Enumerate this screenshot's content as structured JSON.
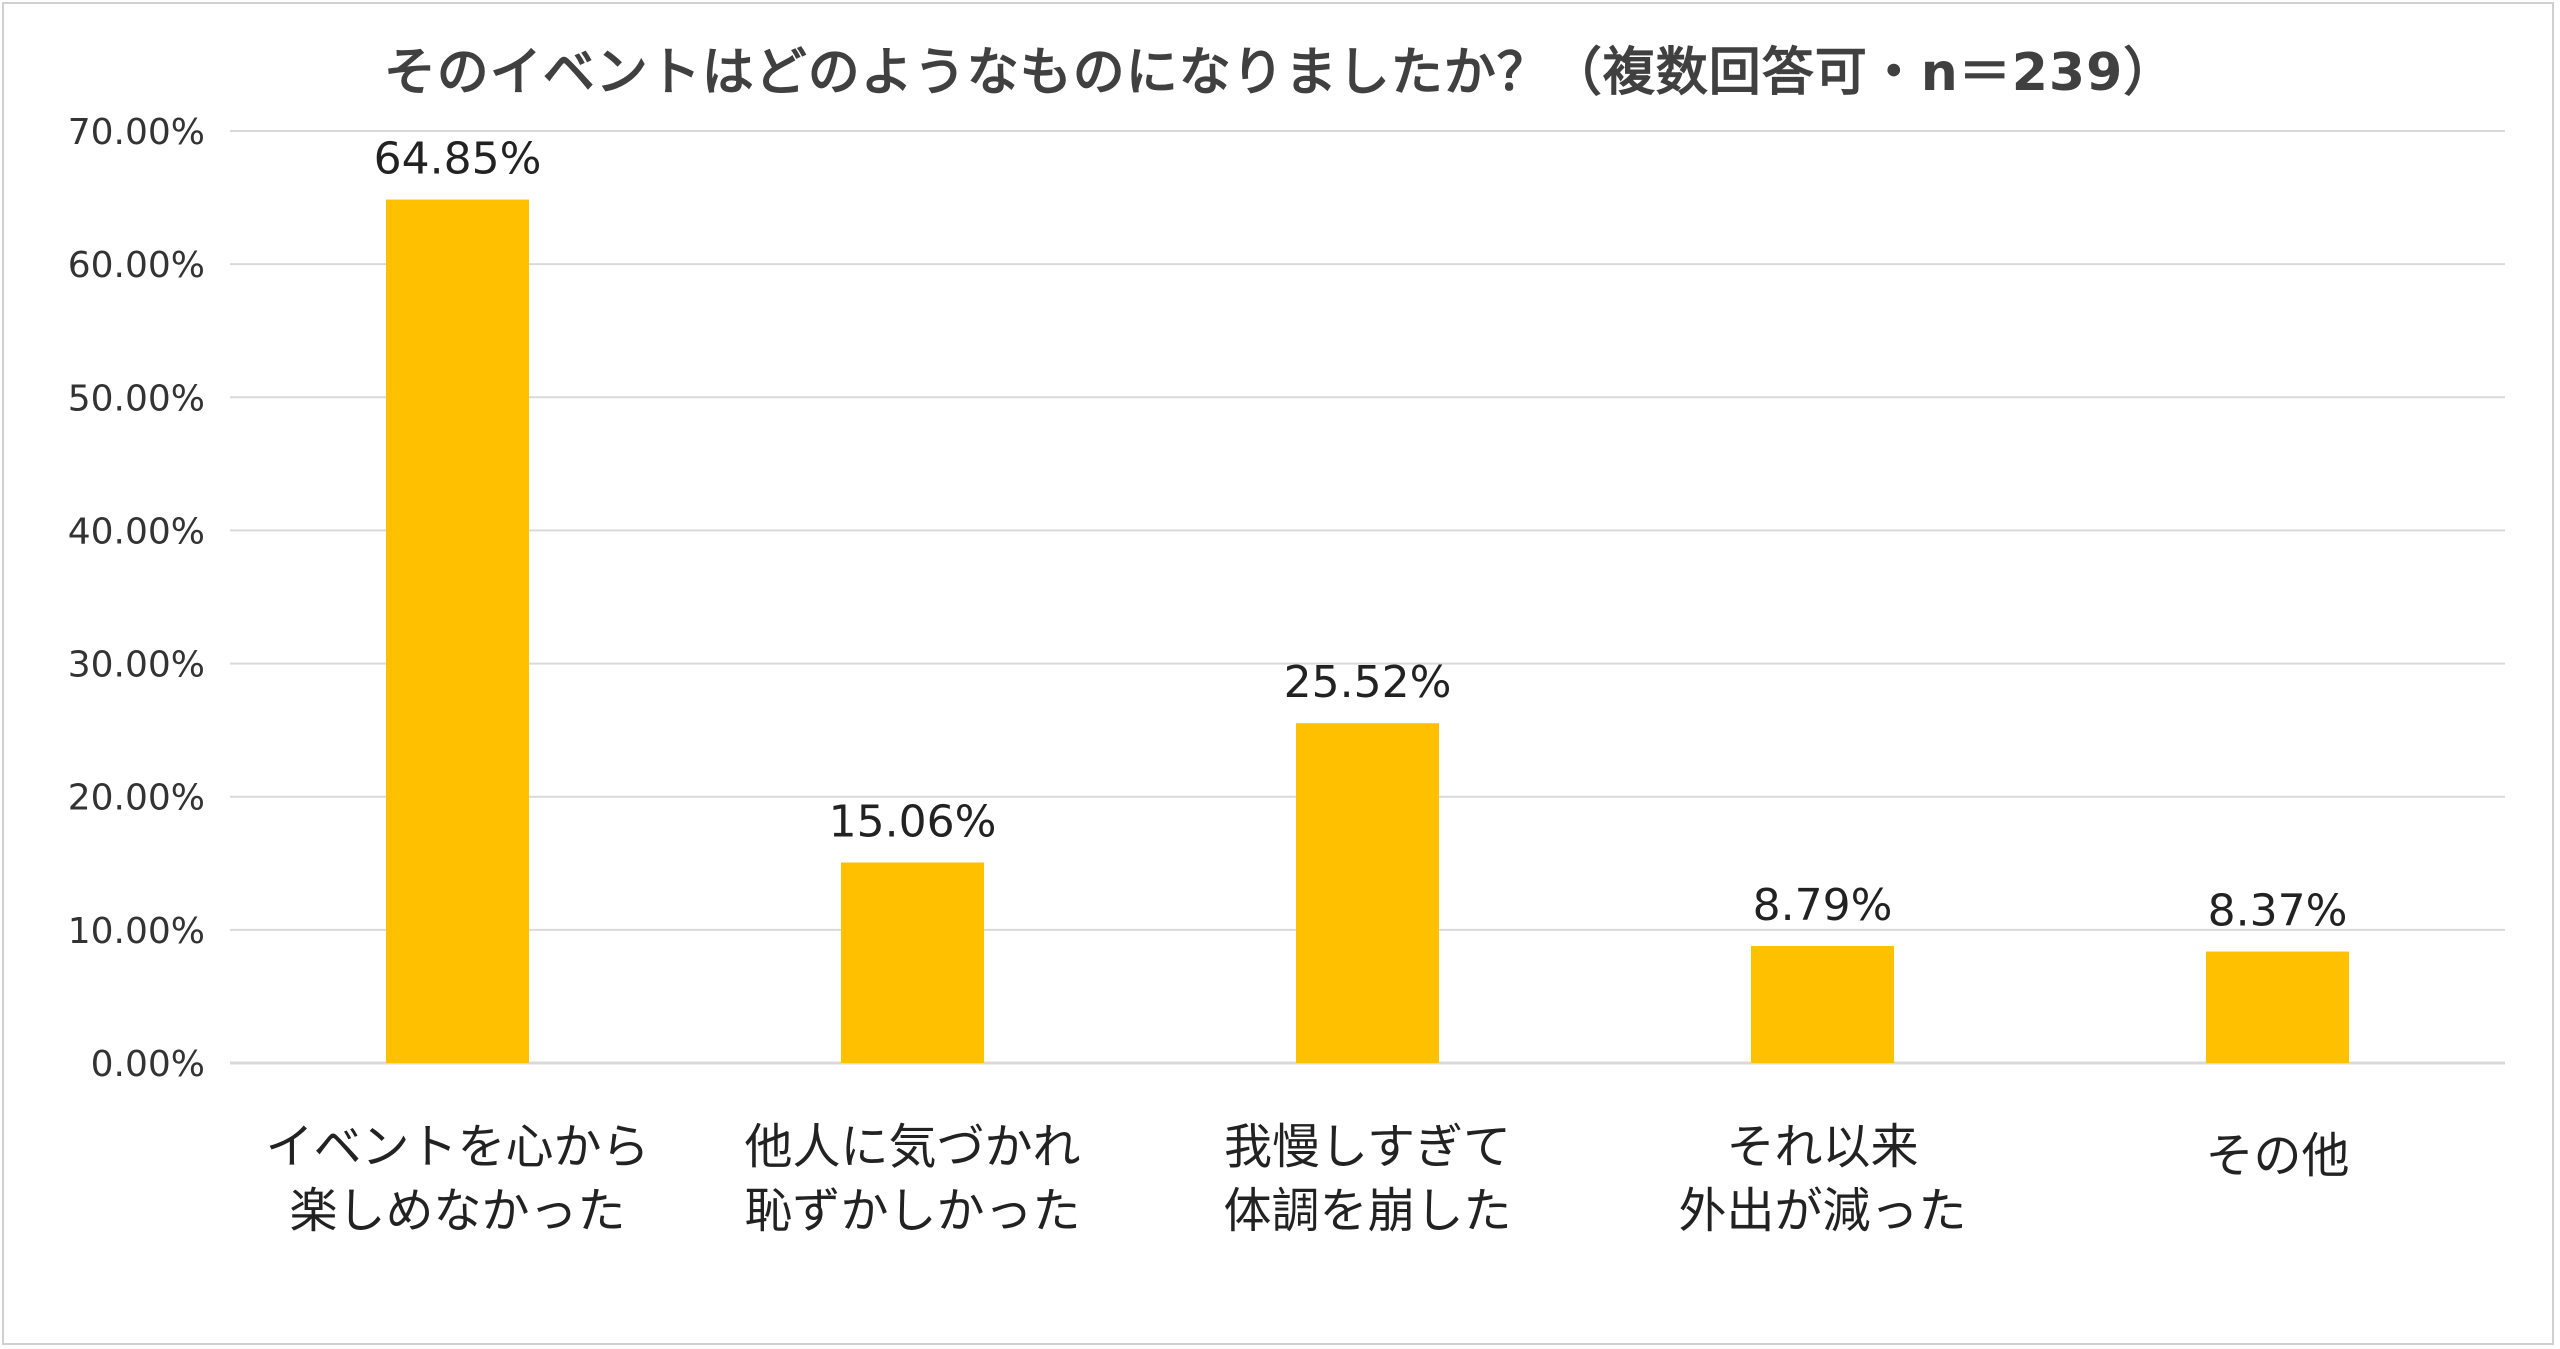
{
  "chart_data": {
    "type": "bar",
    "title": "そのイベントはどのようなものになりましたか？（複数回答可・n＝239）",
    "categories": [
      [
        "イベントを心から",
        "楽しめなかった"
      ],
      [
        "他人に気づかれ",
        "恥ずかしかった"
      ],
      [
        "我慢しすぎて",
        "体調を崩した"
      ],
      [
        "それ以来",
        "外出が減った"
      ],
      [
        "その他"
      ]
    ],
    "values": [
      64.85,
      15.06,
      25.52,
      8.79,
      8.37
    ],
    "value_labels": [
      "64.85%",
      "15.06%",
      "25.52%",
      "8.79%",
      "8.37%"
    ],
    "yticks": [
      "0.00%",
      "10.00%",
      "20.00%",
      "30.00%",
      "40.00%",
      "50.00%",
      "60.00%",
      "70.00%"
    ],
    "ylim": [
      0,
      70
    ],
    "grid": true,
    "bar_color": "#FFC000",
    "grid_color": "#d9d9d9"
  }
}
